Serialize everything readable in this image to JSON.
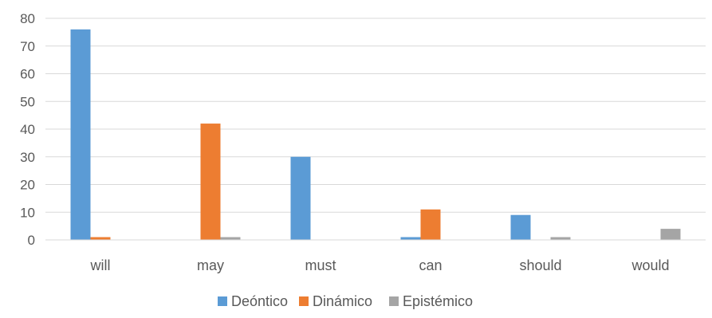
{
  "chart_data": {
    "type": "bar",
    "title": "",
    "xlabel": "",
    "ylabel": "",
    "categories": [
      "will",
      "may",
      "must",
      "can",
      "should",
      "would"
    ],
    "series": [
      {
        "name": "Deóntico",
        "color": "#5b9bd5",
        "values": [
          76,
          0,
          30,
          1,
          9,
          0
        ]
      },
      {
        "name": "Dinámico",
        "color": "#ed7d31",
        "values": [
          1,
          42,
          0,
          11,
          0,
          0
        ]
      },
      {
        "name": "Epistémico",
        "color": "#a5a5a5",
        "values": [
          0,
          1,
          0,
          0,
          1,
          4
        ]
      }
    ],
    "ylim": [
      0,
      80
    ],
    "yticks": [
      0,
      10,
      20,
      30,
      40,
      50,
      60,
      70,
      80
    ],
    "grid": true,
    "legend_position": "bottom"
  }
}
